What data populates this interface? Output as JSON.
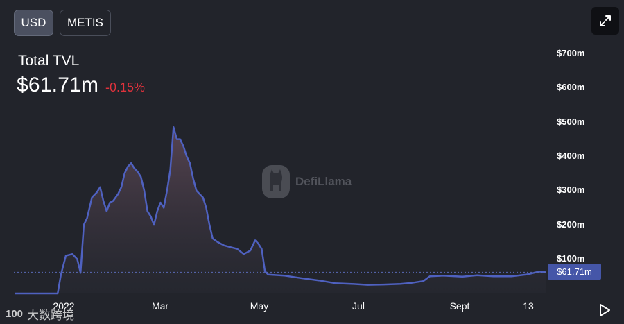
{
  "toggles": {
    "usd_label": "USD",
    "metis_label": "METIS"
  },
  "header": {
    "title": "Total TVL",
    "value": "$61.71m",
    "change": "-0.15%"
  },
  "watermark": {
    "text": "DefiLlama"
  },
  "current_value_label": "$61.71m",
  "brand": {
    "logo": "100",
    "text": "大数跨境"
  },
  "icons": {
    "expand": "expand-icon",
    "play": "play-icon",
    "llama": "llama-logo-icon"
  },
  "colors": {
    "background": "#22242b",
    "line": "#4f61c0",
    "negative_change": "#e0323c",
    "badge": "#4556a8"
  },
  "chart_data": {
    "type": "area",
    "title": "",
    "xlabel": "",
    "ylabel": "",
    "x_ticks": [
      "2022",
      "Mar",
      "May",
      "Jul",
      "Sept",
      "13"
    ],
    "y_ticks": [
      "$100m",
      "$200m",
      "$300m",
      "$400m",
      "$500m",
      "$600m",
      "$700m"
    ],
    "ylim": [
      0,
      700
    ],
    "y_unit": "$m",
    "grid": false,
    "series": [
      {
        "points": [
          [
            "2021-12-01",
            0
          ],
          [
            "2021-12-27",
            0
          ],
          [
            "2021-12-29",
            55
          ],
          [
            "2022-01-01",
            110
          ],
          [
            "2022-01-05",
            115
          ],
          [
            "2022-01-08",
            100
          ],
          [
            "2022-01-10",
            60
          ],
          [
            "2022-01-12",
            200
          ],
          [
            "2022-01-14",
            220
          ],
          [
            "2022-01-17",
            280
          ],
          [
            "2022-01-20",
            295
          ],
          [
            "2022-01-22",
            310
          ],
          [
            "2022-01-24",
            270
          ],
          [
            "2022-01-26",
            240
          ],
          [
            "2022-01-28",
            265
          ],
          [
            "2022-01-30",
            270
          ],
          [
            "2022-02-02",
            290
          ],
          [
            "2022-02-04",
            310
          ],
          [
            "2022-02-06",
            350
          ],
          [
            "2022-02-08",
            370
          ],
          [
            "2022-02-10",
            380
          ],
          [
            "2022-02-12",
            365
          ],
          [
            "2022-02-14",
            355
          ],
          [
            "2022-02-16",
            340
          ],
          [
            "2022-02-18",
            300
          ],
          [
            "2022-02-20",
            240
          ],
          [
            "2022-02-22",
            225
          ],
          [
            "2022-02-24",
            200
          ],
          [
            "2022-02-26",
            240
          ],
          [
            "2022-02-28",
            265
          ],
          [
            "2022-03-02",
            250
          ],
          [
            "2022-03-04",
            300
          ],
          [
            "2022-03-06",
            360
          ],
          [
            "2022-03-08",
            485
          ],
          [
            "2022-03-10",
            450
          ],
          [
            "2022-03-12",
            450
          ],
          [
            "2022-03-14",
            430
          ],
          [
            "2022-03-16",
            400
          ],
          [
            "2022-03-18",
            380
          ],
          [
            "2022-03-20",
            335
          ],
          [
            "2022-03-22",
            300
          ],
          [
            "2022-03-24",
            290
          ],
          [
            "2022-03-26",
            280
          ],
          [
            "2022-03-28",
            250
          ],
          [
            "2022-03-30",
            200
          ],
          [
            "2022-04-01",
            160
          ],
          [
            "2022-04-04",
            150
          ],
          [
            "2022-04-08",
            140
          ],
          [
            "2022-04-12",
            135
          ],
          [
            "2022-04-16",
            130
          ],
          [
            "2022-04-20",
            115
          ],
          [
            "2022-04-24",
            125
          ],
          [
            "2022-04-27",
            155
          ],
          [
            "2022-04-29",
            145
          ],
          [
            "2022-05-01",
            130
          ],
          [
            "2022-05-03",
            65
          ],
          [
            "2022-05-05",
            55
          ],
          [
            "2022-05-15",
            52
          ],
          [
            "2022-05-25",
            45
          ],
          [
            "2022-06-05",
            38
          ],
          [
            "2022-06-15",
            30
          ],
          [
            "2022-06-25",
            28
          ],
          [
            "2022-07-05",
            25
          ],
          [
            "2022-07-15",
            26
          ],
          [
            "2022-07-25",
            28
          ],
          [
            "2022-08-01",
            31
          ],
          [
            "2022-08-08",
            36
          ],
          [
            "2022-08-12",
            50
          ],
          [
            "2022-08-20",
            52
          ],
          [
            "2022-09-01",
            49
          ],
          [
            "2022-09-10",
            53
          ],
          [
            "2022-09-20",
            50
          ],
          [
            "2022-10-01",
            50
          ],
          [
            "2022-10-10",
            55
          ],
          [
            "2022-10-13",
            58
          ],
          [
            "2022-10-18",
            64
          ],
          [
            "2022-10-22",
            62
          ]
        ]
      }
    ]
  }
}
